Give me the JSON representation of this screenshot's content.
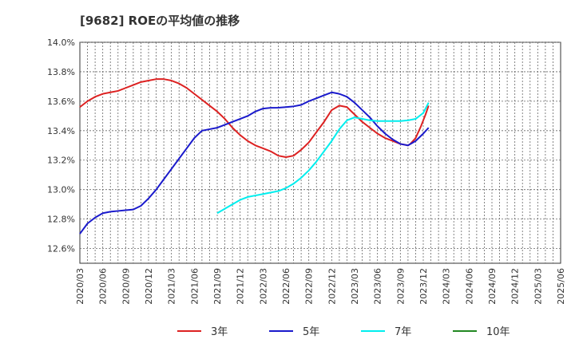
{
  "chart_data": {
    "type": "line",
    "title": "[9682]  ROEの平均値の推移",
    "xlabel": "",
    "ylabel": "",
    "ylim": [
      12.5,
      14.0
    ],
    "y_ticks": [
      "12.6%",
      "12.8%",
      "13.0%",
      "13.2%",
      "13.4%",
      "13.6%",
      "13.8%",
      "14.0%"
    ],
    "y_tick_values": [
      12.6,
      12.8,
      13.0,
      13.2,
      13.4,
      13.6,
      13.8,
      14.0
    ],
    "x_ticks": [
      "2020/03",
      "2020/06",
      "2020/09",
      "2020/12",
      "2021/03",
      "2021/06",
      "2021/09",
      "2021/12",
      "2022/03",
      "2022/06",
      "2022/09",
      "2022/12",
      "2023/03",
      "2023/06",
      "2023/09",
      "2023/12",
      "2024/03",
      "2024/06",
      "2024/09",
      "2024/12",
      "2025/03",
      "2025/06"
    ],
    "grid": true,
    "series": [
      {
        "name": "3年",
        "color": "#dd2222",
        "points": [
          [
            0,
            13.56
          ],
          [
            1,
            13.6
          ],
          [
            2,
            13.63
          ],
          [
            3,
            13.65
          ],
          [
            4,
            13.66
          ],
          [
            5,
            13.67
          ],
          [
            6,
            13.69
          ],
          [
            7,
            13.71
          ],
          [
            8,
            13.73
          ],
          [
            9,
            13.74
          ],
          [
            10,
            13.75
          ],
          [
            11,
            13.75
          ],
          [
            12,
            13.74
          ],
          [
            13,
            13.72
          ],
          [
            14,
            13.69
          ],
          [
            15,
            13.65
          ],
          [
            16,
            13.61
          ],
          [
            17,
            13.57
          ],
          [
            18,
            13.53
          ],
          [
            19,
            13.48
          ],
          [
            20,
            13.42
          ],
          [
            21,
            13.37
          ],
          [
            22,
            13.33
          ],
          [
            23,
            13.3
          ],
          [
            24,
            13.28
          ],
          [
            25,
            13.26
          ],
          [
            26,
            13.23
          ],
          [
            27,
            13.22
          ],
          [
            28,
            13.23
          ],
          [
            29,
            13.27
          ],
          [
            30,
            13.32
          ],
          [
            31,
            13.39
          ],
          [
            32,
            13.46
          ],
          [
            33,
            13.54
          ],
          [
            34,
            13.57
          ],
          [
            35,
            13.56
          ],
          [
            36,
            13.51
          ],
          [
            37,
            13.46
          ],
          [
            38,
            13.42
          ],
          [
            39,
            13.38
          ],
          [
            40,
            13.35
          ],
          [
            41,
            13.33
          ],
          [
            42,
            13.31
          ],
          [
            43,
            13.3
          ],
          [
            43.3,
            13.31
          ],
          [
            44,
            13.35
          ],
          [
            44.7,
            13.43
          ],
          [
            45.3,
            13.51
          ],
          [
            45.7,
            13.57
          ]
        ]
      },
      {
        "name": "5年",
        "color": "#1a1acc",
        "points": [
          [
            0,
            12.7
          ],
          [
            1,
            12.77
          ],
          [
            2,
            12.81
          ],
          [
            3,
            12.84
          ],
          [
            4,
            12.85
          ],
          [
            5,
            12.855
          ],
          [
            6,
            12.86
          ],
          [
            7,
            12.865
          ],
          [
            8,
            12.89
          ],
          [
            9,
            12.94
          ],
          [
            10,
            13.0
          ],
          [
            11,
            13.07
          ],
          [
            12,
            13.14
          ],
          [
            13,
            13.21
          ],
          [
            14,
            13.28
          ],
          [
            15,
            13.35
          ],
          [
            16,
            13.4
          ],
          [
            17,
            13.41
          ],
          [
            18,
            13.42
          ],
          [
            19,
            13.44
          ],
          [
            20,
            13.46
          ],
          [
            21,
            13.48
          ],
          [
            22,
            13.5
          ],
          [
            23,
            13.53
          ],
          [
            24,
            13.55
          ],
          [
            25,
            13.555
          ],
          [
            26,
            13.556
          ],
          [
            27,
            13.56
          ],
          [
            28,
            13.565
          ],
          [
            29,
            13.575
          ],
          [
            30,
            13.6
          ],
          [
            31,
            13.62
          ],
          [
            32,
            13.64
          ],
          [
            33,
            13.66
          ],
          [
            34,
            13.65
          ],
          [
            35,
            13.63
          ],
          [
            36,
            13.59
          ],
          [
            37,
            13.54
          ],
          [
            38,
            13.49
          ],
          [
            39,
            13.43
          ],
          [
            40,
            13.38
          ],
          [
            41,
            13.34
          ],
          [
            42,
            13.31
          ],
          [
            43,
            13.3
          ],
          [
            44,
            13.33
          ],
          [
            45,
            13.38
          ],
          [
            45.7,
            13.42
          ]
        ]
      },
      {
        "name": "7年",
        "color": "#00eeee",
        "points": [
          [
            18,
            12.84
          ],
          [
            19,
            12.87
          ],
          [
            20,
            12.9
          ],
          [
            21,
            12.93
          ],
          [
            22,
            12.95
          ],
          [
            23,
            12.96
          ],
          [
            24,
            12.97
          ],
          [
            25,
            12.98
          ],
          [
            26,
            12.99
          ],
          [
            27,
            13.01
          ],
          [
            28,
            13.04
          ],
          [
            29,
            13.08
          ],
          [
            30,
            13.13
          ],
          [
            31,
            13.19
          ],
          [
            32,
            13.26
          ],
          [
            33,
            13.33
          ],
          [
            34,
            13.41
          ],
          [
            35,
            13.47
          ],
          [
            36,
            13.49
          ],
          [
            37,
            13.48
          ],
          [
            38,
            13.47
          ],
          [
            39,
            13.465
          ],
          [
            40,
            13.465
          ],
          [
            41,
            13.465
          ],
          [
            42,
            13.465
          ],
          [
            43,
            13.47
          ],
          [
            44,
            13.48
          ],
          [
            45,
            13.52
          ],
          [
            45.7,
            13.59
          ]
        ]
      },
      {
        "name": "10年",
        "color": "#228822",
        "points": []
      }
    ]
  }
}
